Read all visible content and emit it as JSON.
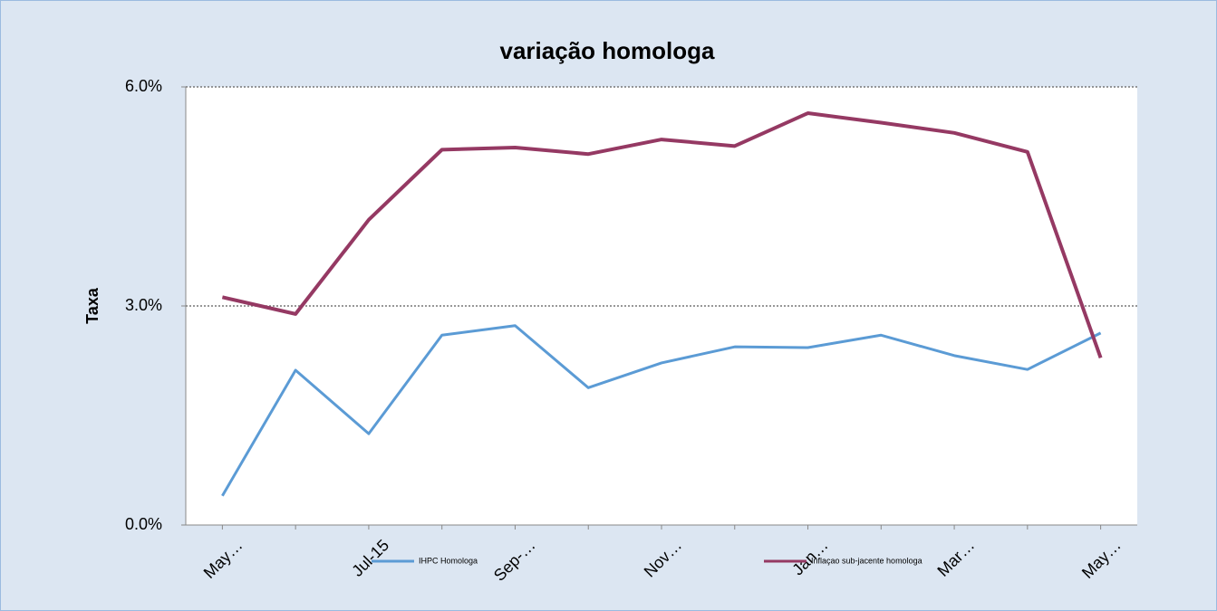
{
  "chart_data": {
    "type": "line",
    "title": "variação homologa",
    "y_label": "Taxa",
    "categories": [
      "May…",
      null,
      "Jul-15",
      null,
      "Sep-…",
      null,
      "Nov…",
      null,
      "Jan…",
      null,
      "Mar…",
      null,
      "May…"
    ],
    "series": [
      {
        "name": "IHPC Homologa",
        "color": "#5b9bd5",
        "values": [
          0.4,
          2.12,
          1.25,
          2.6,
          2.73,
          1.88,
          2.22,
          2.44,
          2.43,
          2.6,
          2.32,
          2.13,
          2.63
        ]
      },
      {
        "name": "Inflaçao sub-jacente homologa",
        "color": "#953963",
        "values": [
          3.12,
          2.89,
          4.18,
          5.14,
          5.17,
          5.08,
          5.28,
          5.19,
          5.64,
          5.51,
          5.37,
          5.11,
          2.29
        ]
      }
    ],
    "ylim": [
      0,
      6
    ],
    "yticks": [
      {
        "value": 0,
        "label": "0.0%"
      },
      {
        "value": 3,
        "label": "3.0%"
      },
      {
        "value": 6,
        "label": "6.0%"
      }
    ],
    "grid": true,
    "legend": "bottom"
  }
}
